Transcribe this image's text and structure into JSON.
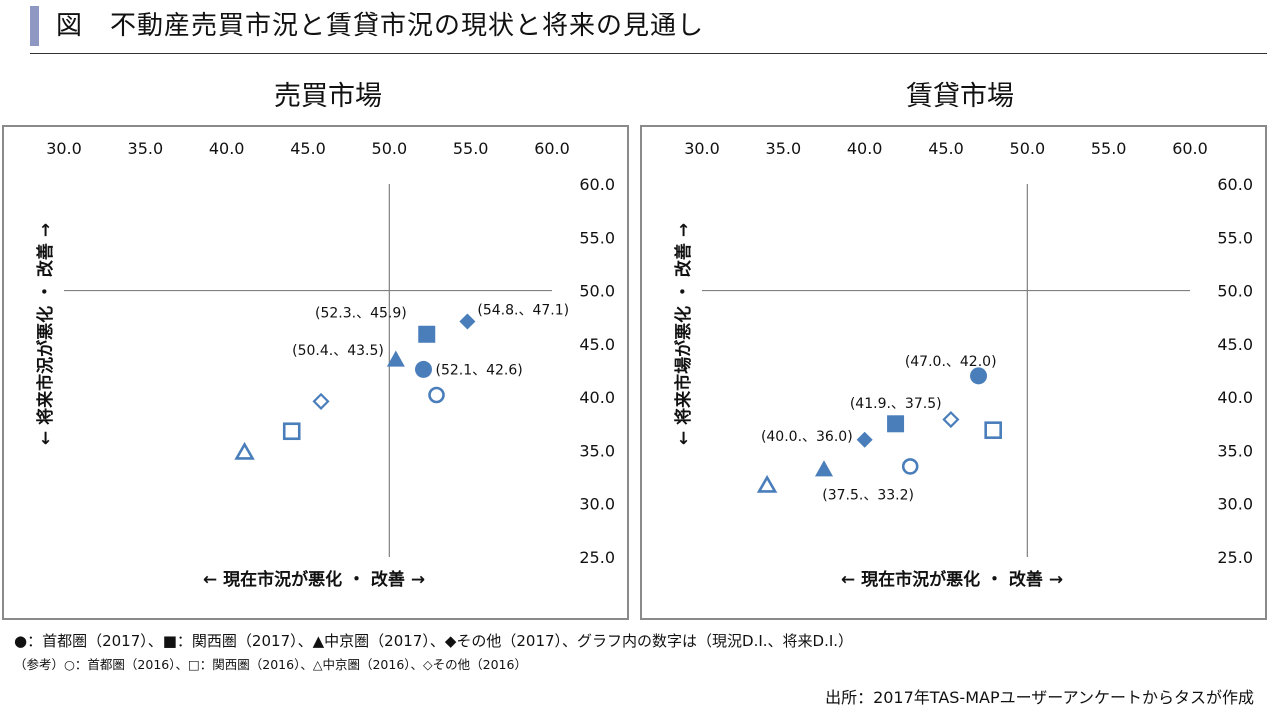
{
  "header": {
    "title": "図　不動産売買市況と賃貸市況の現状と将来の見通し"
  },
  "chart_data": [
    {
      "type": "scatter",
      "title": "売買市場",
      "xlabel": "←  現在市況が悪化  ・  改善  →",
      "ylabel": "←  将来市況が悪化  ・  改善  →",
      "xlim": [
        30,
        60
      ],
      "ylim": [
        25,
        60
      ],
      "x_ticks": [
        "30.0",
        "35.0",
        "40.0",
        "45.0",
        "50.0",
        "55.0",
        "60.0"
      ],
      "y_ticks": [
        "60.0",
        "55.0",
        "50.0",
        "45.0",
        "40.0",
        "35.0",
        "30.0",
        "25.0"
      ],
      "crosshair": {
        "x": 50,
        "y": 50
      },
      "points": [
        {
          "region": "首都圏",
          "year": "2017",
          "marker": "circle",
          "filled": true,
          "x": 52.1,
          "y": 42.6,
          "label": "(52.1、42.6)"
        },
        {
          "region": "関西圏",
          "year": "2017",
          "marker": "square",
          "filled": true,
          "x": 52.3,
          "y": 45.9,
          "label": "(52.3.、45.9)"
        },
        {
          "region": "中京圏",
          "year": "2017",
          "marker": "triangle",
          "filled": true,
          "x": 50.4,
          "y": 43.5,
          "label": "(50.4.、43.5)"
        },
        {
          "region": "その他",
          "year": "2017",
          "marker": "diamond",
          "filled": true,
          "x": 54.8,
          "y": 47.1,
          "label": "(54.8.、47.1)"
        },
        {
          "region": "首都圏",
          "year": "2016",
          "marker": "circle",
          "filled": false,
          "x": 52.9,
          "y": 40.2,
          "label": ""
        },
        {
          "region": "関西圏",
          "year": "2016",
          "marker": "square",
          "filled": false,
          "x": 44.0,
          "y": 36.8,
          "label": ""
        },
        {
          "region": "中京圏",
          "year": "2016",
          "marker": "triangle",
          "filled": false,
          "x": 41.1,
          "y": 34.8,
          "label": ""
        },
        {
          "region": "その他",
          "year": "2016",
          "marker": "diamond",
          "filled": false,
          "x": 45.8,
          "y": 39.6,
          "label": ""
        }
      ]
    },
    {
      "type": "scatter",
      "title": "賃貸市場",
      "xlabel": "←  現在市況が悪化  ・  改善  →",
      "ylabel": "←  将来市場が悪化  ・  改善  →",
      "xlim": [
        30,
        60
      ],
      "ylim": [
        25,
        60
      ],
      "x_ticks": [
        "30.0",
        "35.0",
        "40.0",
        "45.0",
        "50.0",
        "55.0",
        "60.0"
      ],
      "y_ticks": [
        "60.0",
        "55.0",
        "50.0",
        "45.0",
        "40.0",
        "35.0",
        "30.0",
        "25.0"
      ],
      "crosshair": {
        "x": 50,
        "y": 50
      },
      "points": [
        {
          "region": "首都圏",
          "year": "2017",
          "marker": "circle",
          "filled": true,
          "x": 47.0,
          "y": 42.0,
          "label": "(47.0.、42.0)"
        },
        {
          "region": "関西圏",
          "year": "2017",
          "marker": "square",
          "filled": true,
          "x": 41.9,
          "y": 37.5,
          "label": "(41.9.、37.5)"
        },
        {
          "region": "中京圏",
          "year": "2017",
          "marker": "triangle",
          "filled": true,
          "x": 37.5,
          "y": 33.2,
          "label": "(37.5.、33.2)"
        },
        {
          "region": "その他",
          "year": "2017",
          "marker": "diamond",
          "filled": true,
          "x": 40.0,
          "y": 36.0,
          "label": "(40.0.、36.0)"
        },
        {
          "region": "首都圏",
          "year": "2016",
          "marker": "circle",
          "filled": false,
          "x": 42.8,
          "y": 33.5,
          "label": ""
        },
        {
          "region": "関西圏",
          "year": "2016",
          "marker": "square",
          "filled": false,
          "x": 47.9,
          "y": 36.9,
          "label": ""
        },
        {
          "region": "中京圏",
          "year": "2016",
          "marker": "triangle",
          "filled": false,
          "x": 34.0,
          "y": 31.7,
          "label": ""
        },
        {
          "region": "その他",
          "year": "2016",
          "marker": "diamond",
          "filled": false,
          "x": 45.3,
          "y": 37.9,
          "label": ""
        }
      ]
    }
  ],
  "legend": {
    "line1": "●：首都圏（2017）、■：関西圏（2017）、▲中京圏（2017）、◆その他（2017）、グラフ内の数字は（現況D.I.、将来D.I.）",
    "line2": "（参考）○：首都圏（2016）、□：関西圏（2016）、△中京圏（2016）、◇その他（2016）"
  },
  "source": "出所：2017年TAS-MAPユーザーアンケートからタスが作成",
  "colors": {
    "marker": "#4a7ebb",
    "axis": "#808080",
    "border": "#8a8a8a",
    "title_bar": "#8f97c3"
  }
}
